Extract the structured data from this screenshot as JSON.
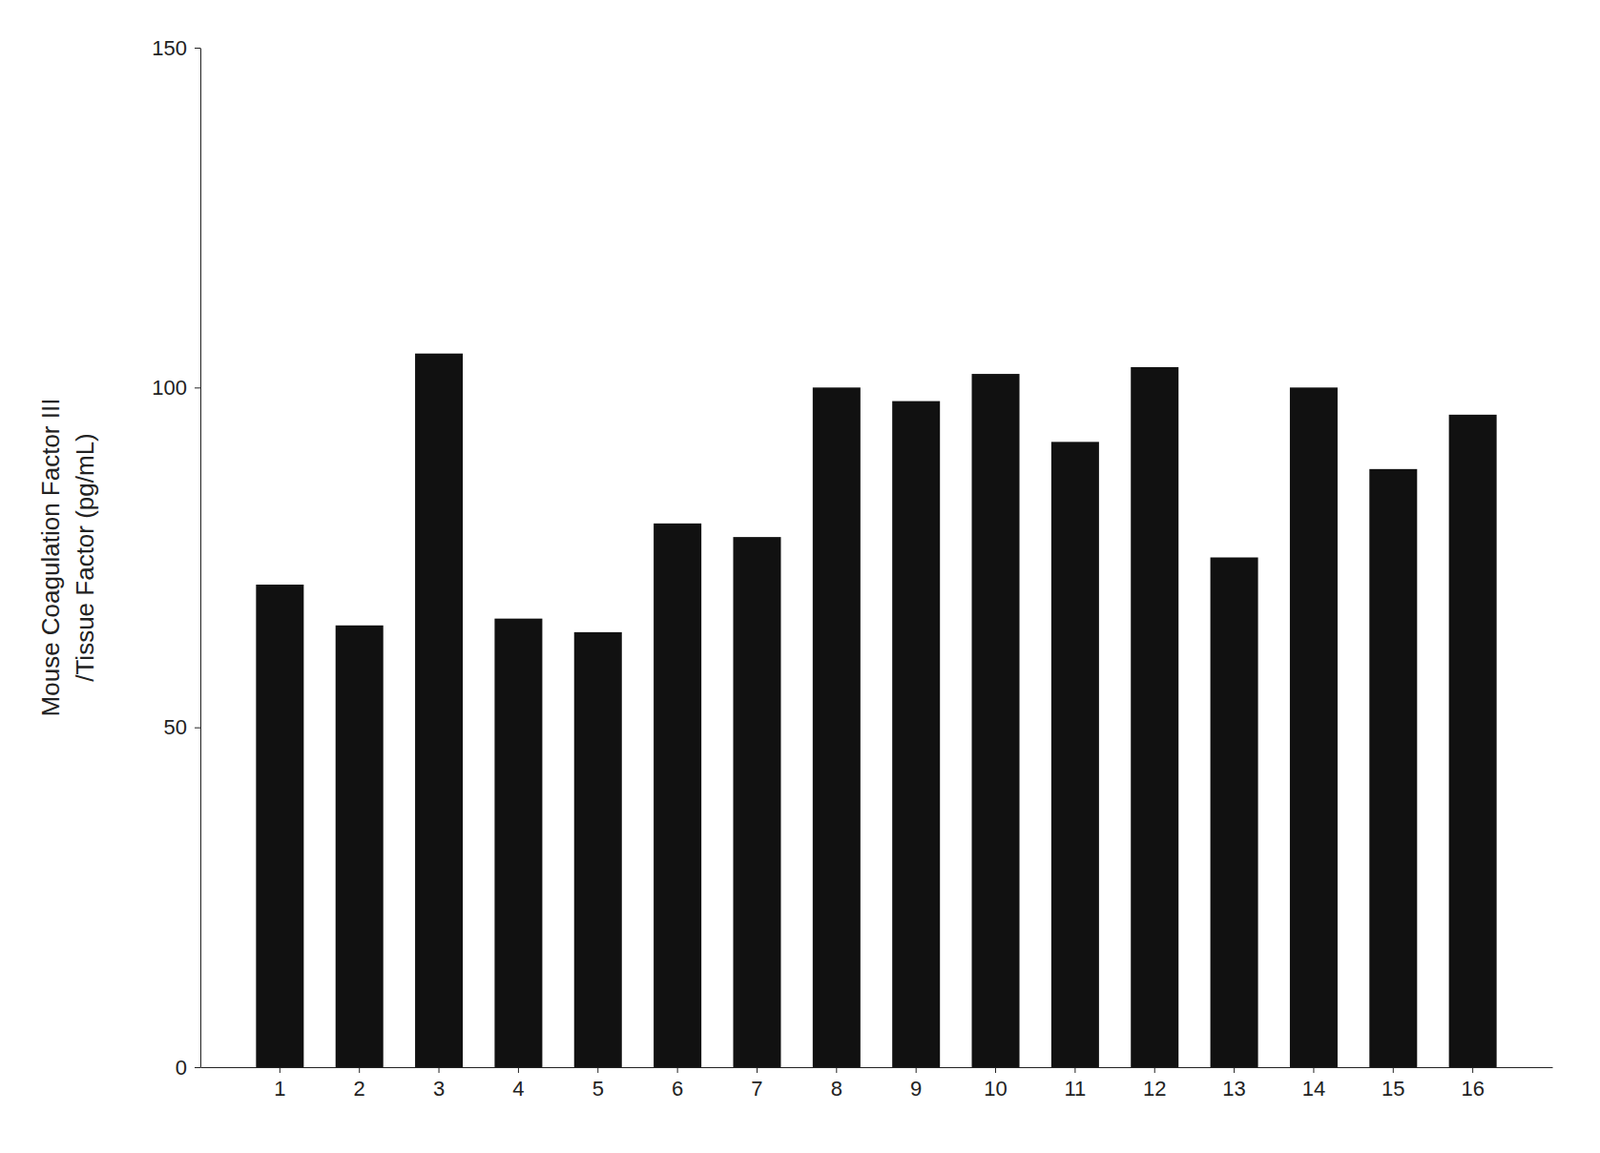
{
  "chart_data": {
    "type": "bar",
    "categories": [
      1,
      2,
      3,
      4,
      5,
      6,
      7,
      8,
      9,
      10,
      11,
      12,
      13,
      14,
      15,
      16
    ],
    "values": [
      71,
      65,
      105,
      66,
      64,
      80,
      78,
      100,
      98,
      102,
      92,
      103,
      75,
      100,
      88,
      96
    ],
    "color": "#111111",
    "ylabel": [
      "Mouse Coagulation Factor III",
      "/Tissue Factor (pg/mL)"
    ],
    "ylim": [
      0,
      150
    ],
    "yticks": [
      0,
      50,
      100,
      150
    ],
    "grid": false
  }
}
